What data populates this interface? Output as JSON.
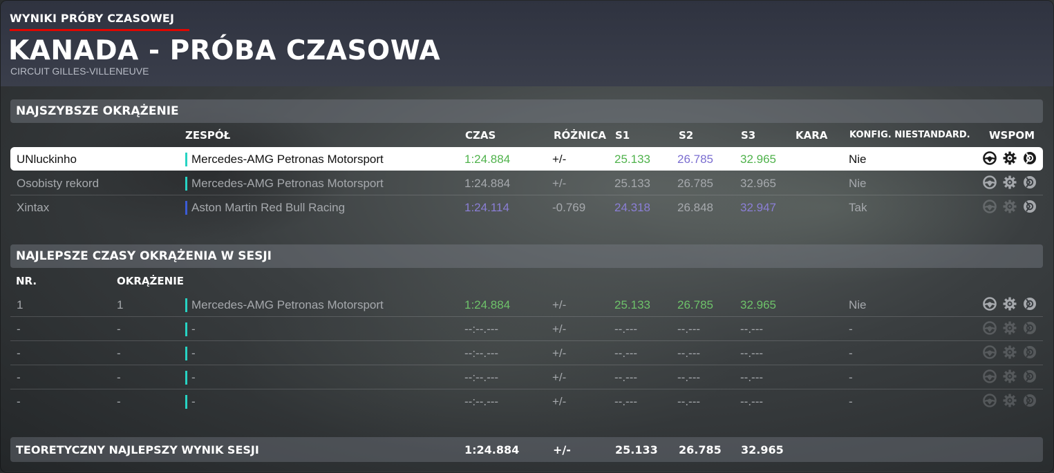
{
  "header": {
    "breadcrumb": "WYNIKI PRÓBY CZASOWEJ",
    "title": "KANADA - PRÓBA CZASOWA",
    "circuit": "CIRCUIT GILLES-VILLENEUVE"
  },
  "fastest": {
    "section_title": "NAJSZYBSZE OKRĄŻENIE",
    "headers": {
      "team": "ZESPÓŁ",
      "time": "CZAS",
      "diff": "RÓŻNICA",
      "s1": "S1",
      "s2": "S2",
      "s3": "S3",
      "penalty": "KARA",
      "config": "KONFIG. NIESTANDARD.",
      "assists": "WSPOM"
    },
    "rows": [
      {
        "name": "UNluckinho",
        "team": "Mercedes-AMG Petronas Motorsport",
        "team_color": "#27d3c3",
        "time": "1:24.884",
        "diff": "+/-",
        "s1": "25.133",
        "s2": "26.785",
        "s3": "32.965",
        "penalty": "",
        "config": "Nie"
      },
      {
        "name": "Osobisty rekord",
        "team": "Mercedes-AMG Petronas Motorsport",
        "team_color": "#27d3c3",
        "time": "1:24.884",
        "diff": "+/-",
        "s1": "25.133",
        "s2": "26.785",
        "s3": "32.965",
        "penalty": "",
        "config": "Nie"
      },
      {
        "name": "Xintax",
        "team": "Aston Martin Red Bull Racing",
        "team_color": "#3b5bd6",
        "time": "1:24.114",
        "diff": "-0.769",
        "s1": "24.318",
        "s2": "26.848",
        "s3": "32.947",
        "penalty": "",
        "config": "Tak"
      }
    ]
  },
  "session": {
    "section_title": "NAJLEPSZE CZASY OKRĄŻENIA W SESJI",
    "headers": {
      "nr": "NR.",
      "lap": "OKRĄŻENIE"
    },
    "rows": [
      {
        "nr": "1",
        "lap": "1",
        "team": "Mercedes-AMG Petronas Motorsport",
        "team_color": "#27d3c3",
        "time": "1:24.884",
        "diff": "+/-",
        "s1": "25.133",
        "s2": "26.785",
        "s3": "32.965",
        "config": "Nie"
      },
      {
        "nr": "-",
        "lap": "-",
        "team": "-",
        "team_color": "#27d3c3",
        "time": "--:--.---",
        "diff": "+/-",
        "s1": "--.---",
        "s2": "--.---",
        "s3": "--.---",
        "config": "-"
      },
      {
        "nr": "-",
        "lap": "-",
        "team": "-",
        "team_color": "#27d3c3",
        "time": "--:--.---",
        "diff": "+/-",
        "s1": "--.---",
        "s2": "--.---",
        "s3": "--.---",
        "config": "-"
      },
      {
        "nr": "-",
        "lap": "-",
        "team": "-",
        "team_color": "#27d3c3",
        "time": "--:--.---",
        "diff": "+/-",
        "s1": "--.---",
        "s2": "--.---",
        "s3": "--.---",
        "config": "-"
      },
      {
        "nr": "-",
        "lap": "-",
        "team": "-",
        "team_color": "#27d3c3",
        "time": "--:--.---",
        "diff": "+/-",
        "s1": "--.---",
        "s2": "--.---",
        "s3": "--.---",
        "config": "-"
      }
    ]
  },
  "theoretical": {
    "label": "TEORETYCZNY NAJLEPSZY WYNIK SESJI",
    "time": "1:24.884",
    "diff": "+/-",
    "s1": "25.133",
    "s2": "26.785",
    "s3": "32.965"
  },
  "colors": {
    "accent_red": "#e10600",
    "green": "#6ec26a",
    "purple": "#8b7fd6",
    "mercedes": "#27d3c3",
    "redbull": "#3b5bd6"
  },
  "icons": [
    "steering-assist-icon",
    "gear-assist-icon",
    "brake-assist-icon"
  ]
}
